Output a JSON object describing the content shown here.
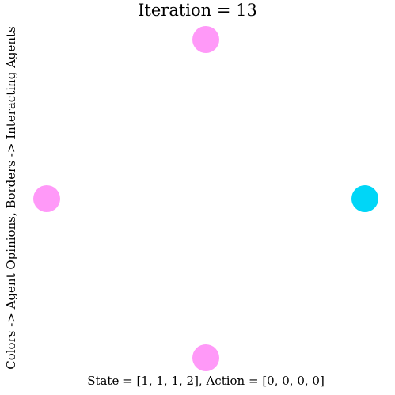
{
  "title": "Iteration = 13",
  "side_label": "Colors -> Agent Opinions, Borders -> Interacting Agents",
  "footer": "State = [1, 1, 1, 2], Action = [0, 0, 0, 0]",
  "opinion_colors": {
    "1": "#ff99f8",
    "2": "#00d6f7"
  },
  "agents": [
    {
      "id": "agent-top",
      "opinion": 1
    },
    {
      "id": "agent-left",
      "opinion": 1
    },
    {
      "id": "agent-bottom",
      "opinion": 1
    },
    {
      "id": "agent-right",
      "opinion": 2
    }
  ]
}
